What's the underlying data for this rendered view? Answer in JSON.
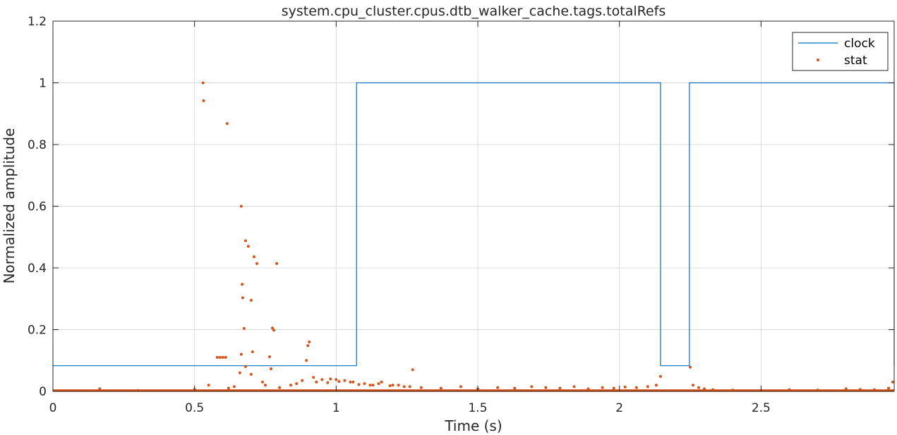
{
  "chart_data": {
    "type": "line",
    "title": "system.cpu_cluster.cpus.dtb_walker_cache.tags.totalRefs",
    "xlabel": "Time (s)",
    "ylabel": "Normalized amplitude",
    "xlim": [
      0,
      2.97
    ],
    "ylim": [
      0,
      1.2
    ],
    "x_ticks": [
      0,
      0.5,
      1,
      1.5,
      2,
      2.5
    ],
    "x_tick_labels": [
      "0",
      "0.5",
      "1",
      "1.5",
      "2",
      "2.5"
    ],
    "y_ticks": [
      0,
      0.2,
      0.4,
      0.6,
      0.8,
      1,
      1.2
    ],
    "y_tick_labels": [
      "0",
      "0.2",
      "0.4",
      "0.6",
      "0.8",
      "1",
      "1.2"
    ],
    "grid": true,
    "legend_position": "top-right",
    "colors": {
      "clock": "#0072BD",
      "stat": "#D95319"
    },
    "series": [
      {
        "name": "clock",
        "kind": "step-line",
        "x": [
          0,
          1.072,
          1.072,
          2.145,
          2.145,
          2.247,
          2.247,
          2.97,
          2.97
        ],
        "y": [
          0.083,
          0.083,
          1,
          1,
          0.083,
          0.083,
          1,
          1,
          0.083
        ]
      },
      {
        "name": "stat",
        "kind": "scatter",
        "x": [
          0.53,
          0.532,
          0.615,
          0.665,
          0.68,
          0.69,
          0.71,
          0.72,
          0.79,
          0.668,
          0.67,
          0.7,
          0.775,
          0.78,
          0.675,
          0.905,
          0.58,
          0.59,
          0.6,
          0.61,
          0.665,
          0.705,
          0.765,
          0.9,
          0.895,
          0.77,
          0.68,
          1.27,
          2.25,
          2.145,
          2.965,
          0.165,
          0.75,
          0.8,
          0.86,
          0.92,
          0.95,
          0.98,
          1.0,
          1.03,
          1.06,
          1.1,
          1.13,
          1.16,
          1.2,
          1.24,
          1.3,
          1.37,
          1.44,
          1.5,
          1.57,
          1.63,
          1.69,
          1.74,
          1.79,
          1.84,
          1.89,
          1.94,
          1.98,
          2.02,
          2.06,
          2.1,
          2.13,
          2.26,
          2.28,
          2.3,
          2.33,
          2.4,
          2.5,
          2.6,
          2.7,
          2.8,
          2.85,
          2.9,
          2.95,
          0.66,
          0.7,
          0.74,
          0.84,
          0.88,
          0.93,
          0.97,
          1.01,
          1.05,
          1.08,
          1.12,
          1.15,
          1.19,
          1.22,
          1.26,
          0.3,
          0.5,
          0.55,
          0.62,
          0.64
        ],
        "y": [
          1.0,
          0.942,
          0.868,
          0.6,
          0.488,
          0.47,
          0.436,
          0.414,
          0.414,
          0.347,
          0.303,
          0.295,
          0.205,
          0.198,
          0.204,
          0.16,
          0.11,
          0.11,
          0.11,
          0.11,
          0.12,
          0.128,
          0.112,
          0.148,
          0.1,
          0.073,
          0.08,
          0.07,
          0.078,
          0.048,
          0.03,
          0.008,
          0.02,
          0.012,
          0.025,
          0.045,
          0.038,
          0.04,
          0.038,
          0.035,
          0.03,
          0.025,
          0.02,
          0.03,
          0.02,
          0.015,
          0.012,
          0.01,
          0.015,
          0.008,
          0.012,
          0.01,
          0.015,
          0.012,
          0.01,
          0.015,
          0.008,
          0.012,
          0.01,
          0.014,
          0.012,
          0.015,
          0.02,
          0.02,
          0.012,
          0.008,
          0.005,
          0.004,
          0.003,
          0.005,
          0.004,
          0.008,
          0.006,
          0.005,
          0.01,
          0.06,
          0.055,
          0.03,
          0.02,
          0.035,
          0.03,
          0.028,
          0.032,
          0.03,
          0.022,
          0.02,
          0.025,
          0.018,
          0.02,
          0.015,
          0.003,
          0.006,
          0.02,
          0.01,
          0.015
        ]
      }
    ]
  }
}
